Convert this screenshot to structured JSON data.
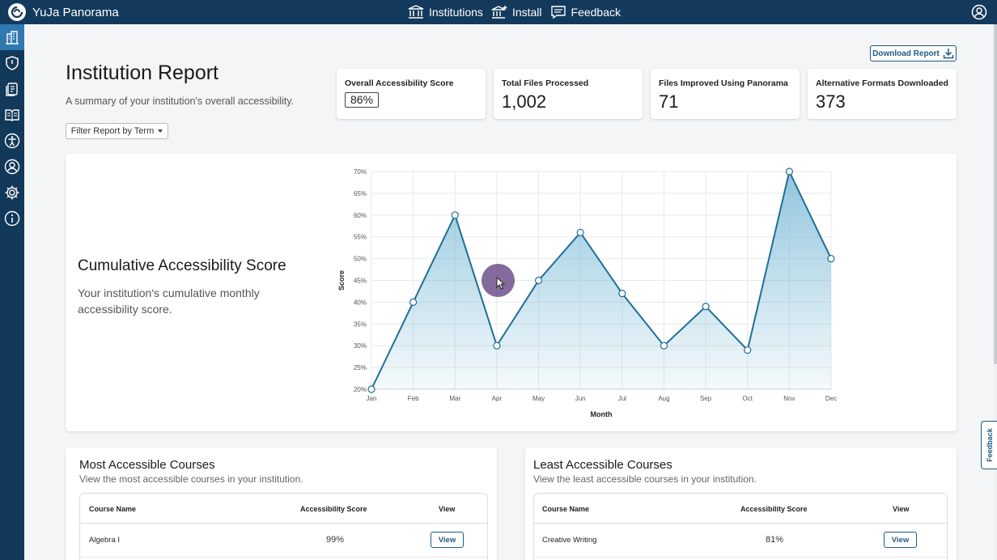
{
  "app": {
    "name": "YuJa Panorama"
  },
  "topnav": {
    "items": [
      {
        "label": "Institutions",
        "icon": "institution-icon"
      },
      {
        "label": "Install",
        "icon": "install-icon"
      },
      {
        "label": "Feedback",
        "icon": "feedback-icon"
      }
    ]
  },
  "sidebar": {
    "items": [
      {
        "icon": "institution-icon",
        "active": true
      },
      {
        "icon": "shield-icon"
      },
      {
        "icon": "documents-icon"
      },
      {
        "icon": "book-icon"
      },
      {
        "icon": "accessibility-icon"
      },
      {
        "icon": "user-icon"
      },
      {
        "icon": "gear-icon"
      },
      {
        "icon": "info-icon"
      }
    ]
  },
  "header": {
    "title": "Institution Report",
    "subtitle": "A summary of your institution's overall accessibility.",
    "filter_label": "Filter Report by Term",
    "download_label": "Download Report"
  },
  "stats": [
    {
      "label": "Overall Accessibility Score",
      "value": "86%"
    },
    {
      "label": "Total Files Processed",
      "value": "1,002"
    },
    {
      "label": "Files Improved Using Panorama",
      "value": "71"
    },
    {
      "label": "Alternative Formats Downloaded",
      "value": "373"
    }
  ],
  "chart_section": {
    "title": "Cumulative Accessibility Score",
    "description": "Your institution's cumulative monthly accessibility score."
  },
  "chart_data": {
    "type": "area",
    "categories": [
      "Jan",
      "Feb",
      "Mar",
      "Apr",
      "May",
      "Jun",
      "Jul",
      "Aug",
      "Sep",
      "Oct",
      "Nov",
      "Dec"
    ],
    "values": [
      20,
      40,
      60,
      30,
      45,
      56,
      42,
      30,
      39,
      29,
      70,
      50
    ],
    "xlabel": "Month",
    "ylabel": "Score",
    "ylim": [
      20,
      70
    ],
    "yticks": [
      "20%",
      "25%",
      "30%",
      "35%",
      "40%",
      "45%",
      "50%",
      "55%",
      "60%",
      "65%",
      "70%"
    ],
    "grid": true,
    "line_color": "#1f6e96",
    "fill_color": "#7fbcd8"
  },
  "most_accessible": {
    "title": "Most Accessible Courses",
    "subtitle": "View the most accessible courses in your institution.",
    "columns": [
      "Course Name",
      "Accessibility Score",
      "View"
    ],
    "rows": [
      {
        "name": "Algebra I",
        "score": "99%",
        "action": "View"
      }
    ]
  },
  "least_accessible": {
    "title": "Least Accessible Courses",
    "subtitle": "View the least accessible courses in your institution.",
    "columns": [
      "Course Name",
      "Accessibility Score",
      "View"
    ],
    "rows": [
      {
        "name": "Creative Writing",
        "score": "81%",
        "action": "View"
      }
    ]
  },
  "feedback_tab": {
    "label": "Feedback"
  }
}
